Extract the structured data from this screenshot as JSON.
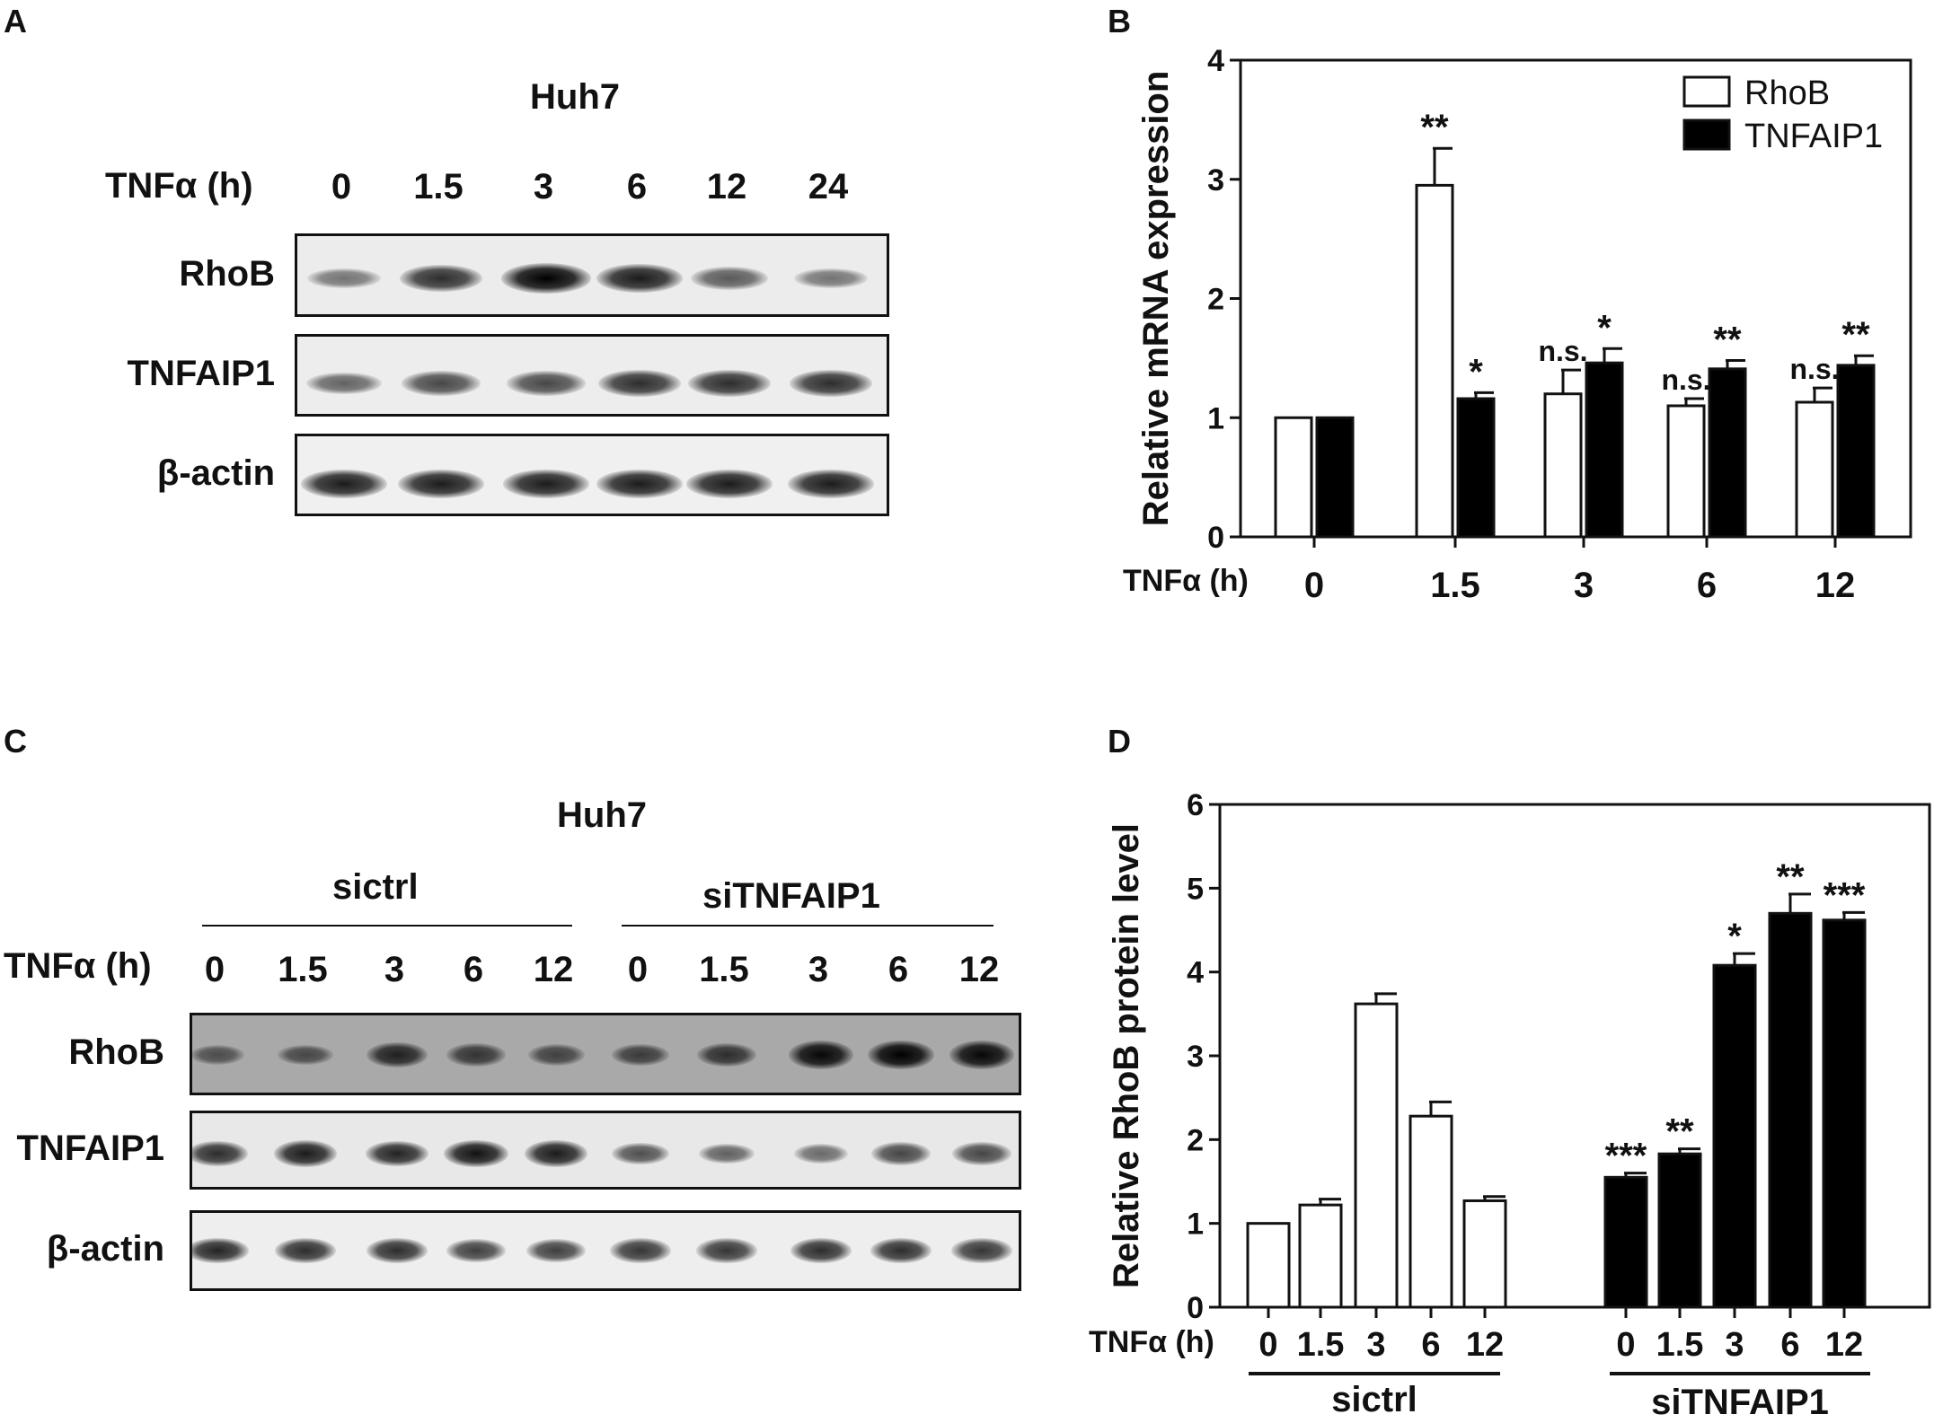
{
  "panels": {
    "A": {
      "letter": "A",
      "cell_line": "Huh7",
      "time_label": "TNFα (h)",
      "timepoints": [
        "0",
        "1.5",
        "3",
        "6",
        "12",
        "24"
      ],
      "rows": [
        "RhoB",
        "TNFAIP1",
        "β-actin"
      ],
      "band_intensity": {
        "RhoB": [
          0.35,
          0.75,
          1.0,
          0.85,
          0.5,
          0.35
        ],
        "TNFAIP1": [
          0.45,
          0.6,
          0.6,
          0.75,
          0.75,
          0.75
        ],
        "β-actin": [
          0.85,
          0.85,
          0.85,
          0.85,
          0.85,
          0.85
        ]
      }
    },
    "B": {
      "letter": "B"
    },
    "C": {
      "letter": "C",
      "cell_line": "Huh7",
      "group_labels": [
        "sictrl",
        "siTNFAIP1"
      ],
      "time_label": "TNFα (h)",
      "timepoints": [
        "0",
        "1.5",
        "3",
        "6",
        "12",
        "0",
        "1.5",
        "3",
        "6",
        "12"
      ],
      "rows": [
        "RhoB",
        "TNFAIP1",
        "β-actin"
      ],
      "band_intensity": {
        "RhoB": [
          0.4,
          0.45,
          0.75,
          0.6,
          0.5,
          0.55,
          0.65,
          0.95,
          1.0,
          0.95
        ],
        "TNFAIP1": [
          0.75,
          0.85,
          0.8,
          0.9,
          0.85,
          0.55,
          0.45,
          0.4,
          0.6,
          0.6
        ],
        "β-actin": [
          0.8,
          0.75,
          0.75,
          0.65,
          0.65,
          0.7,
          0.7,
          0.75,
          0.75,
          0.7
        ]
      }
    },
    "D": {
      "letter": "D"
    }
  },
  "chart_data": [
    {
      "panel": "B",
      "type": "bar",
      "ylabel": "Relative mRNA expression",
      "xlabel": "TNFα (h)",
      "categories": [
        "0",
        "1.5",
        "3",
        "6",
        "12"
      ],
      "ylim": [
        0,
        4
      ],
      "yticks": [
        "0",
        "1",
        "2",
        "3",
        "4"
      ],
      "legend_position": "top-right",
      "series": [
        {
          "name": "RhoB",
          "color": "#ffffff",
          "values": [
            1.0,
            2.95,
            1.2,
            1.1,
            1.13
          ],
          "errors": [
            0,
            0.31,
            0.2,
            0.06,
            0.12
          ],
          "annotations": [
            "",
            "**",
            "n.s.",
            "n.s.",
            "n.s."
          ]
        },
        {
          "name": "TNFAIP1",
          "color": "#000000",
          "values": [
            1.0,
            1.16,
            1.46,
            1.41,
            1.44
          ],
          "errors": [
            0,
            0.05,
            0.12,
            0.07,
            0.08
          ],
          "annotations": [
            "",
            "*",
            "*",
            "**",
            "**"
          ]
        }
      ]
    },
    {
      "panel": "D",
      "type": "bar",
      "ylabel": "Relative RhoB protein level",
      "xlabel": "TNFα (h)",
      "categories": [
        "0",
        "1.5",
        "3",
        "6",
        "12"
      ],
      "ylim": [
        0,
        6
      ],
      "yticks": [
        "0",
        "1",
        "2",
        "3",
        "4",
        "5",
        "6"
      ],
      "groups": [
        {
          "name": "sictrl",
          "color": "#ffffff",
          "values": [
            1.0,
            1.22,
            3.62,
            2.28,
            1.27
          ],
          "errors": [
            0,
            0.07,
            0.12,
            0.17,
            0.05
          ],
          "annotations": [
            "",
            "",
            "",
            "",
            ""
          ]
        },
        {
          "name": "siTNFAIP1",
          "color": "#000000",
          "values": [
            1.55,
            1.83,
            4.08,
            4.7,
            4.62
          ],
          "errors": [
            0.05,
            0.06,
            0.14,
            0.23,
            0.09
          ],
          "annotations": [
            "***",
            "**",
            "*",
            "**",
            "***"
          ]
        }
      ]
    }
  ]
}
